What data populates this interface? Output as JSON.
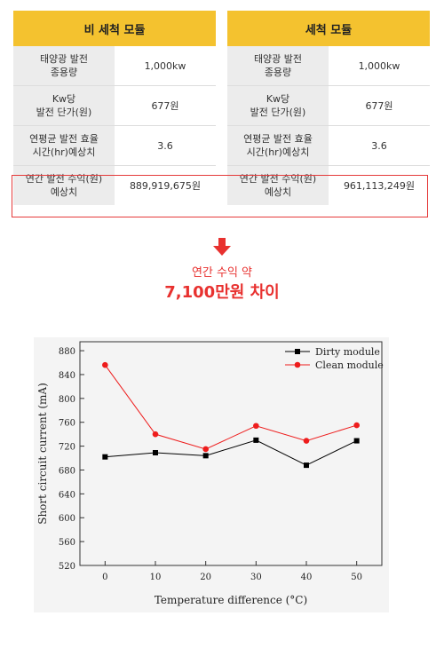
{
  "tables": [
    {
      "title": "비 세척 모듈",
      "rows": [
        {
          "label": [
            "태양광 발전",
            "종용량"
          ],
          "value": "1,000kw"
        },
        {
          "label": [
            "Kw당",
            "발전 단가(원)"
          ],
          "value": "677원"
        },
        {
          "label": [
            "연평균 발전 효율",
            "시간(hr)예상치"
          ],
          "value": "3.6"
        },
        {
          "label": [
            "연간 발전 수익(원)",
            "예상치"
          ],
          "value": "889,919,675원"
        }
      ]
    },
    {
      "title": "세척 모듈",
      "rows": [
        {
          "label": [
            "태양광 발전",
            "종용량"
          ],
          "value": "1,000kw"
        },
        {
          "label": [
            "Kw당",
            "발전 단가(원)"
          ],
          "value": "677원"
        },
        {
          "label": [
            "연평균 발전 효율",
            "시간(hr)예상치"
          ],
          "value": "3.6"
        },
        {
          "label": [
            "연간 발전 수익(원)",
            "예상치"
          ],
          "value": "961,113,249원"
        }
      ]
    }
  ],
  "summary": {
    "line1": "연간 수익 약",
    "line2": "7,100만원 차이"
  },
  "colors": {
    "header_bg": "#f4c22f",
    "accent_red": "#e8312f",
    "dirty_series": "#000000",
    "clean_series": "#ee1c1c"
  },
  "chart_data": {
    "type": "line",
    "xlabel": "Temperature difference (°C)",
    "ylabel": "Short circuit current (mA)",
    "x": [
      0,
      10,
      20,
      30,
      40,
      50
    ],
    "x_ticks": [
      "0",
      "10",
      "20",
      "30",
      "40",
      "50"
    ],
    "xlim": [
      -5,
      55
    ],
    "ylim": [
      520,
      895
    ],
    "y_ticks": [
      "520",
      "560",
      "600",
      "640",
      "680",
      "720",
      "760",
      "800",
      "840",
      "880"
    ],
    "legend_position": "top-right",
    "grid": false,
    "series": [
      {
        "name": "Dirty module",
        "marker": "square",
        "color": "#000000",
        "values": [
          702,
          709,
          704,
          730,
          688,
          729
        ]
      },
      {
        "name": "Clean module",
        "marker": "circle",
        "color": "#ee1c1c",
        "values": [
          856,
          740,
          715,
          754,
          729,
          755
        ]
      }
    ]
  }
}
